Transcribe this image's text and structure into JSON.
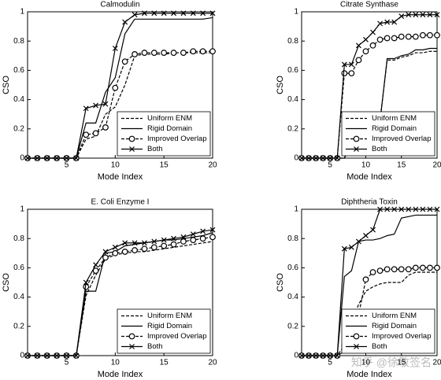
{
  "chart_data": [
    {
      "type": "line",
      "title": "Calmodulin",
      "xlabel": "Mode Index",
      "ylabel": "CSO",
      "x": [
        1,
        2,
        3,
        4,
        5,
        6,
        7,
        8,
        9,
        10,
        11,
        12,
        13,
        14,
        15,
        16,
        17,
        18,
        19,
        20
      ],
      "xlim": [
        1,
        20
      ],
      "xticks": [
        5,
        10,
        15,
        20
      ],
      "ylim": [
        0,
        1
      ],
      "yticks": [
        0,
        0.2,
        0.4,
        0.6,
        0.8,
        1
      ],
      "legend": "lower right",
      "series": [
        {
          "name": "Uniform ENM",
          "color": "#000000",
          "dash": true,
          "marker": "none",
          "values": [
            0,
            0,
            0,
            0,
            0,
            0,
            0.13,
            0.15,
            0.3,
            0.35,
            0.5,
            0.7,
            0.71,
            0.71,
            0.71,
            0.72,
            0.72,
            0.72,
            0.72,
            0.72
          ]
        },
        {
          "name": "Rigid Domain",
          "color": "#000000",
          "dash": false,
          "marker": "none",
          "values": [
            0,
            0,
            0,
            0,
            0,
            0,
            0.24,
            0.24,
            0.45,
            0.55,
            0.85,
            0.95,
            0.95,
            0.95,
            0.95,
            0.95,
            0.95,
            0.95,
            0.95,
            0.96
          ]
        },
        {
          "name": "Improved Overlap",
          "color": "#000000",
          "dash": true,
          "marker": "o",
          "values": [
            0,
            0,
            0,
            0,
            0,
            0,
            0.16,
            0.17,
            0.21,
            0.48,
            0.66,
            0.71,
            0.72,
            0.72,
            0.72,
            0.72,
            0.72,
            0.73,
            0.73,
            0.73
          ]
        },
        {
          "name": "Both",
          "color": "#000000",
          "dash": false,
          "marker": "x",
          "values": [
            0,
            0,
            0,
            0,
            0,
            0,
            0.34,
            0.36,
            0.37,
            0.75,
            0.93,
            0.98,
            0.99,
            0.99,
            0.99,
            0.99,
            0.99,
            0.99,
            0.99,
            0.99
          ]
        }
      ]
    },
    {
      "type": "line",
      "title": "Citrate Synthase",
      "xlabel": "Mode Index",
      "ylabel": "CSO",
      "x": [
        1,
        2,
        3,
        4,
        5,
        6,
        7,
        8,
        9,
        10,
        11,
        12,
        13,
        14,
        15,
        16,
        17,
        18,
        19,
        20
      ],
      "xlim": [
        1,
        20
      ],
      "xticks": [
        5,
        10,
        15,
        20
      ],
      "ylim": [
        0,
        1
      ],
      "yticks": [
        0,
        0.2,
        0.4,
        0.6,
        0.8,
        1
      ],
      "legend": "lower right",
      "series": [
        {
          "name": "Uniform ENM",
          "color": "#000000",
          "dash": true,
          "marker": "none",
          "values": [
            0,
            0,
            0,
            0,
            0,
            0,
            0,
            0.12,
            0.13,
            0.22,
            0.25,
            0.26,
            0.67,
            0.67,
            0.69,
            0.7,
            0.72,
            0.72,
            0.73,
            0.73
          ]
        },
        {
          "name": "Rigid Domain",
          "color": "#000000",
          "dash": false,
          "marker": "none",
          "values": [
            0,
            0,
            0,
            0,
            0,
            0,
            0,
            0.09,
            0.1,
            0.2,
            0.22,
            0.25,
            0.68,
            0.68,
            0.7,
            0.71,
            0.74,
            0.74,
            0.75,
            0.75
          ]
        },
        {
          "name": "Improved Overlap",
          "color": "#000000",
          "dash": true,
          "marker": "o",
          "values": [
            0,
            0,
            0,
            0,
            0,
            0,
            0.58,
            0.58,
            0.67,
            0.73,
            0.77,
            0.81,
            0.82,
            0.82,
            0.83,
            0.83,
            0.83,
            0.84,
            0.84,
            0.84
          ]
        },
        {
          "name": "Both",
          "color": "#000000",
          "dash": false,
          "marker": "x",
          "values": [
            0,
            0,
            0,
            0,
            0,
            0,
            0.64,
            0.64,
            0.77,
            0.81,
            0.86,
            0.92,
            0.93,
            0.93,
            0.97,
            0.98,
            0.98,
            0.98,
            0.98,
            0.98
          ]
        }
      ]
    },
    {
      "type": "line",
      "title": "E. Coli Enzyme I",
      "xlabel": "Mode Index",
      "ylabel": "CSO",
      "x": [
        1,
        2,
        3,
        4,
        5,
        6,
        7,
        8,
        9,
        10,
        11,
        12,
        13,
        14,
        15,
        16,
        17,
        18,
        19,
        20
      ],
      "xlim": [
        1,
        20
      ],
      "xticks": [
        5,
        10,
        15,
        20
      ],
      "ylim": [
        0,
        1
      ],
      "yticks": [
        0,
        0.2,
        0.4,
        0.6,
        0.8,
        1
      ],
      "legend": "lower right",
      "series": [
        {
          "name": "Uniform ENM",
          "color": "#000000",
          "dash": true,
          "marker": "none",
          "values": [
            0,
            0,
            0,
            0,
            0,
            0,
            0.41,
            0.55,
            0.66,
            0.69,
            0.7,
            0.71,
            0.71,
            0.72,
            0.73,
            0.74,
            0.75,
            0.76,
            0.77,
            0.78
          ]
        },
        {
          "name": "Rigid Domain",
          "color": "#000000",
          "dash": false,
          "marker": "none",
          "values": [
            0,
            0,
            0,
            0,
            0,
            0,
            0.44,
            0.44,
            0.7,
            0.71,
            0.75,
            0.76,
            0.77,
            0.78,
            0.79,
            0.79,
            0.8,
            0.81,
            0.82,
            0.84
          ]
        },
        {
          "name": "Improved Overlap",
          "color": "#000000",
          "dash": true,
          "marker": "o",
          "values": [
            0,
            0,
            0,
            0,
            0,
            0,
            0.47,
            0.58,
            0.67,
            0.7,
            0.71,
            0.72,
            0.73,
            0.74,
            0.75,
            0.76,
            0.78,
            0.79,
            0.8,
            0.81
          ]
        },
        {
          "name": "Both",
          "color": "#000000",
          "dash": false,
          "marker": "x",
          "values": [
            0,
            0,
            0,
            0,
            0,
            0,
            0.5,
            0.62,
            0.71,
            0.74,
            0.77,
            0.77,
            0.77,
            0.78,
            0.79,
            0.8,
            0.81,
            0.83,
            0.85,
            0.86
          ]
        }
      ]
    },
    {
      "type": "line",
      "title": "Diphtheria Toxin",
      "xlabel": "Mode Index",
      "ylabel": "CSO",
      "x": [
        1,
        2,
        3,
        4,
        5,
        6,
        7,
        8,
        9,
        10,
        11,
        12,
        13,
        14,
        15,
        16,
        17,
        18,
        19,
        20
      ],
      "xlim": [
        1,
        20
      ],
      "xticks": [
        5,
        10,
        15,
        20
      ],
      "ylim": [
        0,
        1
      ],
      "yticks": [
        0,
        0.2,
        0.4,
        0.6,
        0.8,
        1
      ],
      "legend": "lower right",
      "series": [
        {
          "name": "Uniform ENM",
          "color": "#000000",
          "dash": true,
          "marker": "none",
          "values": [
            0,
            0,
            0,
            0,
            0,
            0,
            0.03,
            0.23,
            0.35,
            0.44,
            0.47,
            0.49,
            0.5,
            0.5,
            0.5,
            0.55,
            0.57,
            0.57,
            0.57,
            0.57
          ]
        },
        {
          "name": "Rigid Domain",
          "color": "#000000",
          "dash": false,
          "marker": "none",
          "values": [
            0,
            0,
            0,
            0,
            0,
            0,
            0.54,
            0.58,
            0.78,
            0.79,
            0.79,
            0.8,
            0.82,
            0.83,
            0.94,
            0.95,
            0.96,
            0.96,
            0.96,
            0.96
          ]
        },
        {
          "name": "Improved Overlap",
          "color": "#000000",
          "dash": true,
          "marker": "o",
          "values": [
            0,
            0,
            0,
            0,
            0,
            0,
            0.07,
            0.28,
            0.28,
            0.52,
            0.57,
            0.58,
            0.59,
            0.59,
            0.59,
            0.59,
            0.6,
            0.6,
            0.6,
            0.6
          ]
        },
        {
          "name": "Both",
          "color": "#000000",
          "dash": false,
          "marker": "x",
          "values": [
            0,
            0,
            0,
            0,
            0,
            0,
            0.73,
            0.74,
            0.78,
            0.82,
            0.86,
            1,
            1,
            1,
            1,
            1,
            1,
            1,
            1,
            1
          ]
        }
      ]
    }
  ],
  "watermark": "知乎 @徐敬签名"
}
